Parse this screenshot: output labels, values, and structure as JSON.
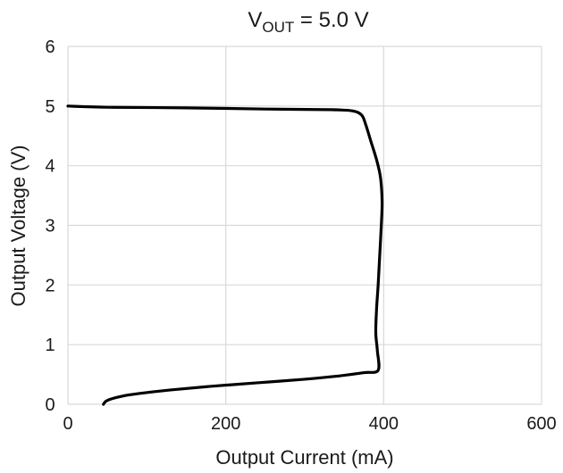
{
  "chart_data": {
    "type": "line",
    "title": {
      "base": "V",
      "sub": "OUT",
      "rest": " = 5.0 V"
    },
    "xlabel": "Output Current (mA)",
    "ylabel": "Output Voltage (V)",
    "xlim": [
      0,
      600
    ],
    "ylim": [
      0,
      6
    ],
    "xticks": [
      "0",
      "200",
      "400",
      "600"
    ],
    "yticks": [
      "0",
      "1",
      "2",
      "3",
      "4",
      "5",
      "6"
    ],
    "grid": true,
    "series": [
      {
        "color": "#000000",
        "points": [
          [
            45,
            0.0
          ],
          [
            48,
            0.05
          ],
          [
            55,
            0.09
          ],
          [
            70,
            0.14
          ],
          [
            90,
            0.18
          ],
          [
            130,
            0.24
          ],
          [
            180,
            0.3
          ],
          [
            240,
            0.36
          ],
          [
            300,
            0.42
          ],
          [
            340,
            0.47
          ],
          [
            375,
            0.53
          ],
          [
            393,
            0.57
          ],
          [
            392,
            0.9
          ],
          [
            390,
            1.2
          ],
          [
            391,
            1.6
          ],
          [
            393,
            2.0
          ],
          [
            395,
            2.5
          ],
          [
            397,
            3.0
          ],
          [
            398,
            3.4
          ],
          [
            396,
            3.8
          ],
          [
            391,
            4.1
          ],
          [
            384,
            4.4
          ],
          [
            377,
            4.7
          ],
          [
            372,
            4.85
          ],
          [
            360,
            4.92
          ],
          [
            330,
            4.94
          ],
          [
            250,
            4.95
          ],
          [
            150,
            4.97
          ],
          [
            50,
            4.98
          ],
          [
            0,
            5.0
          ]
        ]
      }
    ]
  }
}
